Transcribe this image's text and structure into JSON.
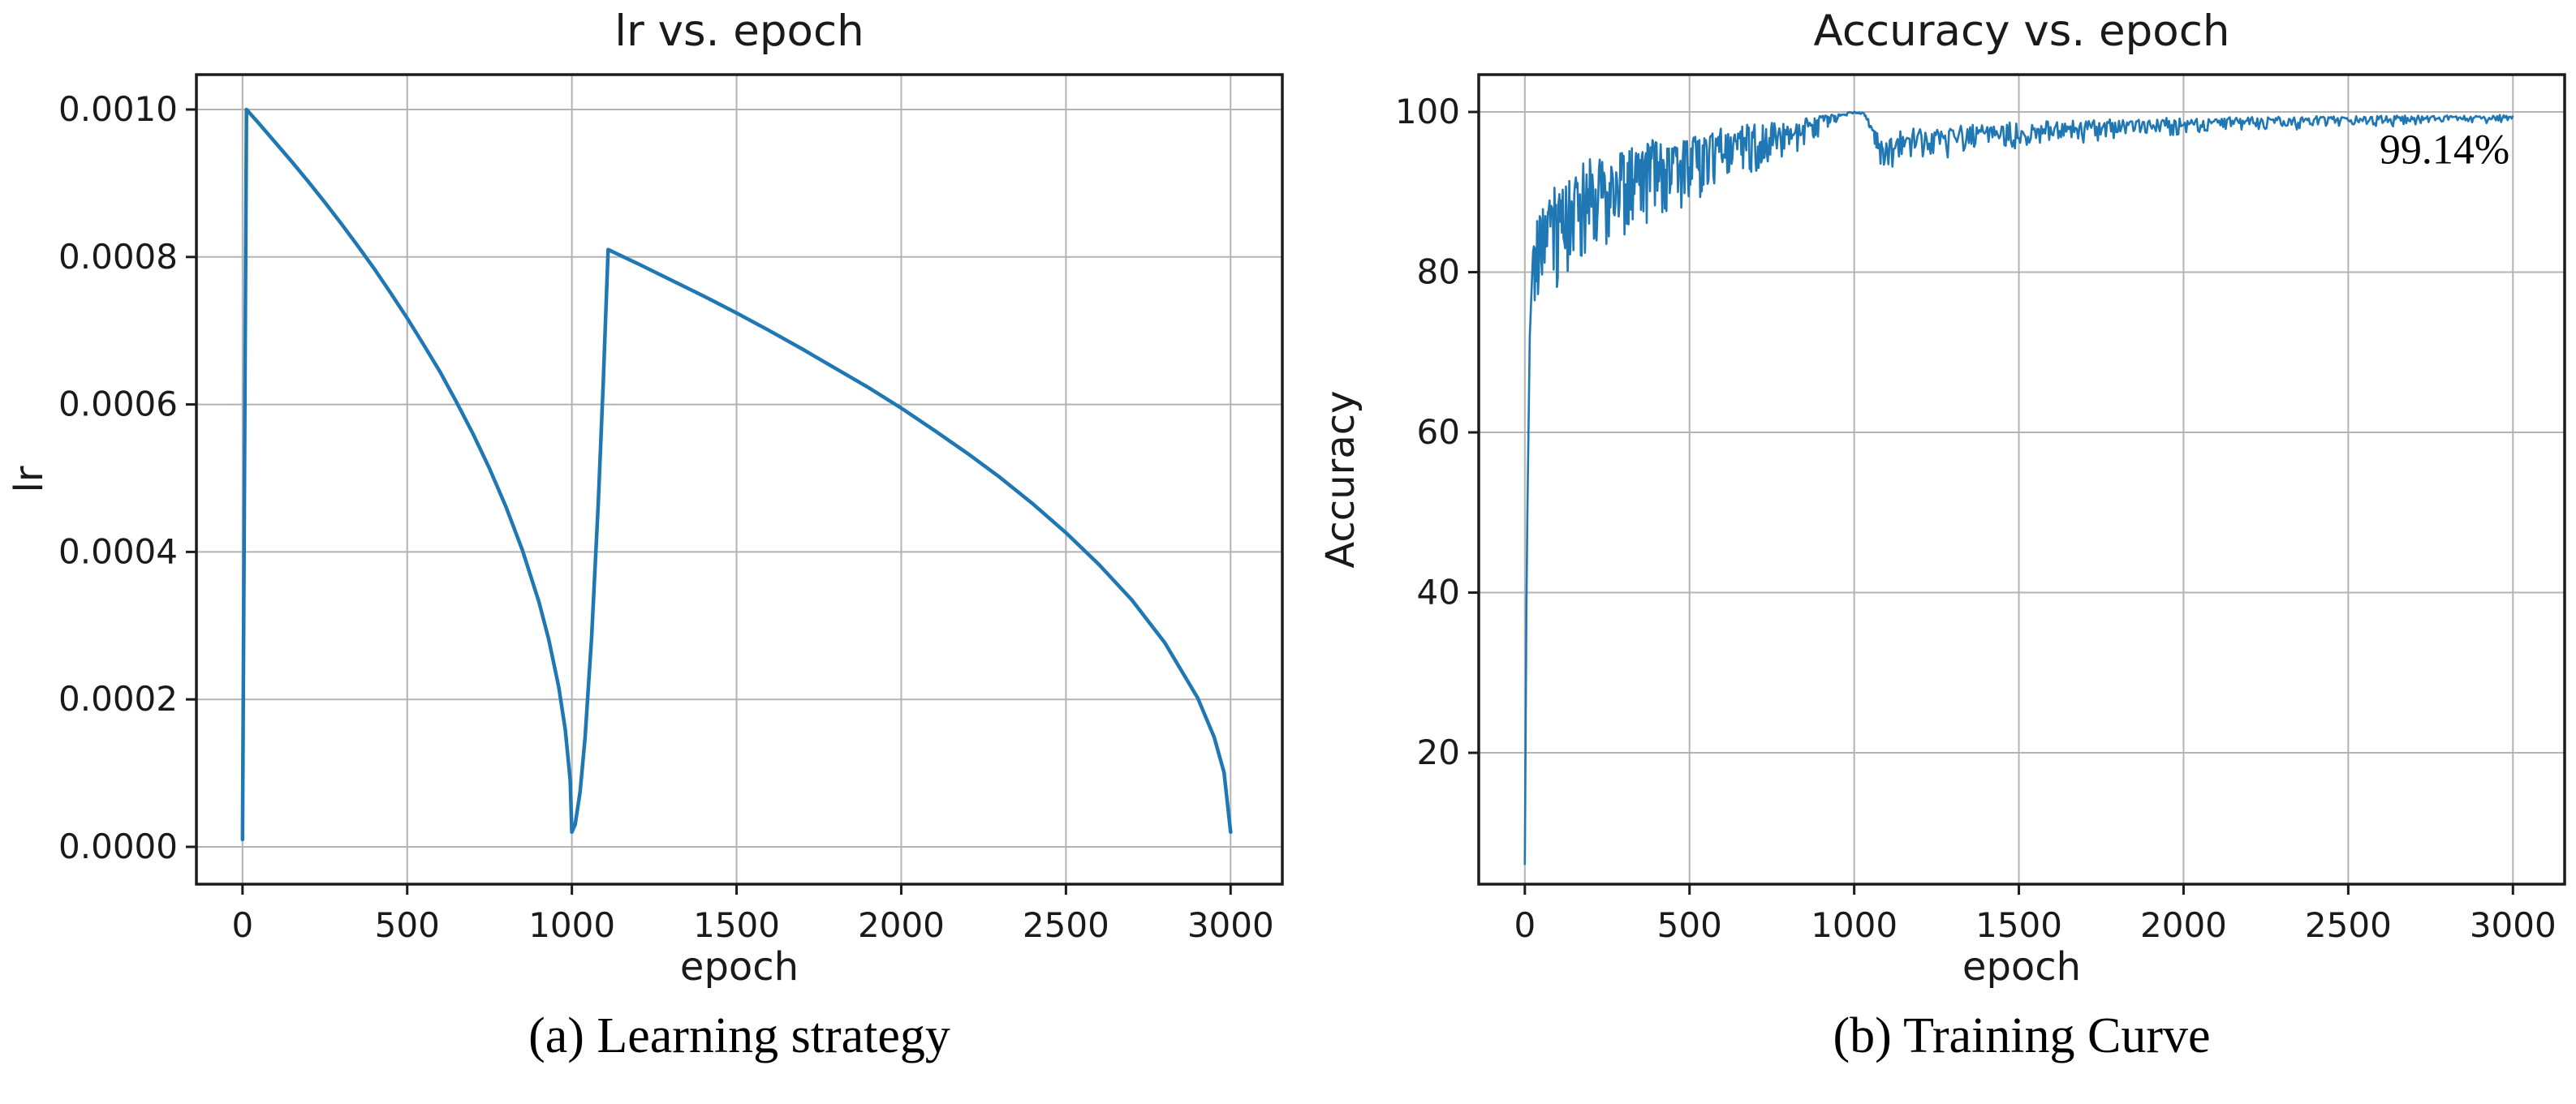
{
  "figure": {
    "background": "#ffffff",
    "text_color": "#1a1a1a",
    "grid_color": "#b3b3b3",
    "spine_color": "#1c1c1c"
  },
  "chart_data": [
    {
      "id": "lr",
      "type": "line",
      "title": "lr vs. epoch",
      "xlabel": "epoch",
      "ylabel": "lr",
      "caption": "(a) Learning strategy",
      "line_color": "#1f77b4",
      "grid": true,
      "legend": "none",
      "xlim": [
        -140,
        3157
      ],
      "ylim": [
        -5.06e-05,
        0.0010473
      ],
      "xticks": [
        0,
        500,
        1000,
        1500,
        2000,
        2500,
        3000
      ],
      "xtick_labels": [
        "0",
        "500",
        "1000",
        "1500",
        "2000",
        "2500",
        "3000"
      ],
      "yticks": [
        0.0,
        0.0002,
        0.0004,
        0.0006,
        0.0008,
        0.001
      ],
      "ytick_labels": [
        "0.0000",
        "0.0002",
        "0.0004",
        "0.0006",
        "0.0008",
        "0.0010"
      ],
      "description": "Cosine-restart learning rate schedule: fast warmup to 0.001, decay to ~0.00002 at epoch 1000, restart warmup to 0.00081 at epoch ~1110, decay to ~0.00002 at epoch 3000",
      "series": [
        {
          "name": "lr",
          "x": [
            0,
            12,
            50,
            100,
            150,
            200,
            250,
            300,
            350,
            400,
            450,
            500,
            550,
            600,
            650,
            700,
            750,
            800,
            850,
            900,
            930,
            960,
            980,
            995,
            1000,
            1010,
            1025,
            1040,
            1060,
            1080,
            1095,
            1110,
            1200,
            1300,
            1400,
            1500,
            1600,
            1700,
            1800,
            1900,
            2000,
            2100,
            2200,
            2300,
            2400,
            2500,
            2600,
            2700,
            2800,
            2900,
            2950,
            2980,
            3000
          ],
          "y": [
            1e-05,
            0.001,
            0.000981,
            0.000955,
            0.000929,
            0.000902,
            0.000874,
            0.000845,
            0.000815,
            0.000784,
            0.000751,
            0.000717,
            0.000681,
            0.000644,
            0.000603,
            0.00056,
            0.000513,
            0.000461,
            0.000402,
            0.000332,
            0.000281,
            0.000217,
            0.000159,
            9e-05,
            2e-05,
            3.05e-05,
            7.5e-05,
            0.000148,
            0.000285,
            0.000465,
            0.000627,
            0.00081,
            0.000791,
            0.000769,
            0.000747,
            0.000724,
            0.0007,
            0.000675,
            0.000649,
            0.000623,
            0.000595,
            0.000565,
            0.000534,
            0.000501,
            0.000465,
            0.000426,
            0.000383,
            0.000335,
            0.000277,
            0.000202,
            0.000149,
            0.000101,
            2e-05
          ]
        }
      ]
    },
    {
      "id": "accuracy",
      "type": "line",
      "title": "Accuracy vs. epoch",
      "xlabel": "epoch",
      "ylabel": "Accuracy",
      "caption": "(b) Training Curve",
      "line_color": "#1f77b4",
      "grid": true,
      "legend": "none",
      "xlim": [
        -140,
        3157
      ],
      "ylim": [
        3.6,
        104.66
      ],
      "xticks": [
        0,
        500,
        1000,
        1500,
        2000,
        2500,
        3000
      ],
      "xtick_labels": [
        "0",
        "500",
        "1000",
        "1500",
        "2000",
        "2500",
        "3000"
      ],
      "yticks": [
        20,
        40,
        60,
        80,
        100
      ],
      "ytick_labels": [
        "20",
        "40",
        "60",
        "80",
        "100"
      ],
      "final_accuracy": "99.14%",
      "annotation": {
        "text": "99.14%",
        "x": 2990,
        "y": 95.3,
        "anchor": "end"
      },
      "description": "Noisy training accuracy: starts ~6%, climbs rapidly above 80% within ~30 epochs, noisy rise to a smooth bump touching 100% near epoch 1000, brief dip to ~93% after LR restart, then slow climb to 99.14% at epoch 3000",
      "envelope": {
        "x": [
          0,
          6,
          15,
          25,
          40,
          80,
          120,
          200,
          300,
          400,
          500,
          600,
          700,
          800,
          870,
          920,
          960,
          1000,
          1030,
          1052,
          1080,
          1100,
          1140,
          1200,
          1350,
          1500,
          1700,
          1900,
          2100,
          2300,
          2500,
          2700,
          2850,
          3000
        ],
        "mean": [
          6,
          45,
          72,
          82,
          86,
          88.5,
          90,
          92,
          93.5,
          95,
          96,
          96.8,
          97.4,
          98.1,
          98.8,
          99.4,
          99.8,
          100,
          99.85,
          98.4,
          96.2,
          96.0,
          97.0,
          97.4,
          97.9,
          98.2,
          98.5,
          98.8,
          99.0,
          99.15,
          99.25,
          99.35,
          99.4,
          99.5
        ],
        "amp": [
          0,
          0,
          2,
          3.5,
          4.5,
          5.2,
          5.5,
          5.0,
          4.6,
          4.2,
          3.6,
          3.1,
          2.7,
          2.1,
          1.4,
          0.7,
          0.25,
          0.05,
          0.1,
          0.6,
          1.4,
          1.6,
          1.8,
          1.7,
          1.5,
          1.3,
          1.1,
          0.95,
          0.8,
          0.7,
          0.6,
          0.5,
          0.45,
          0.35
        ]
      }
    }
  ]
}
